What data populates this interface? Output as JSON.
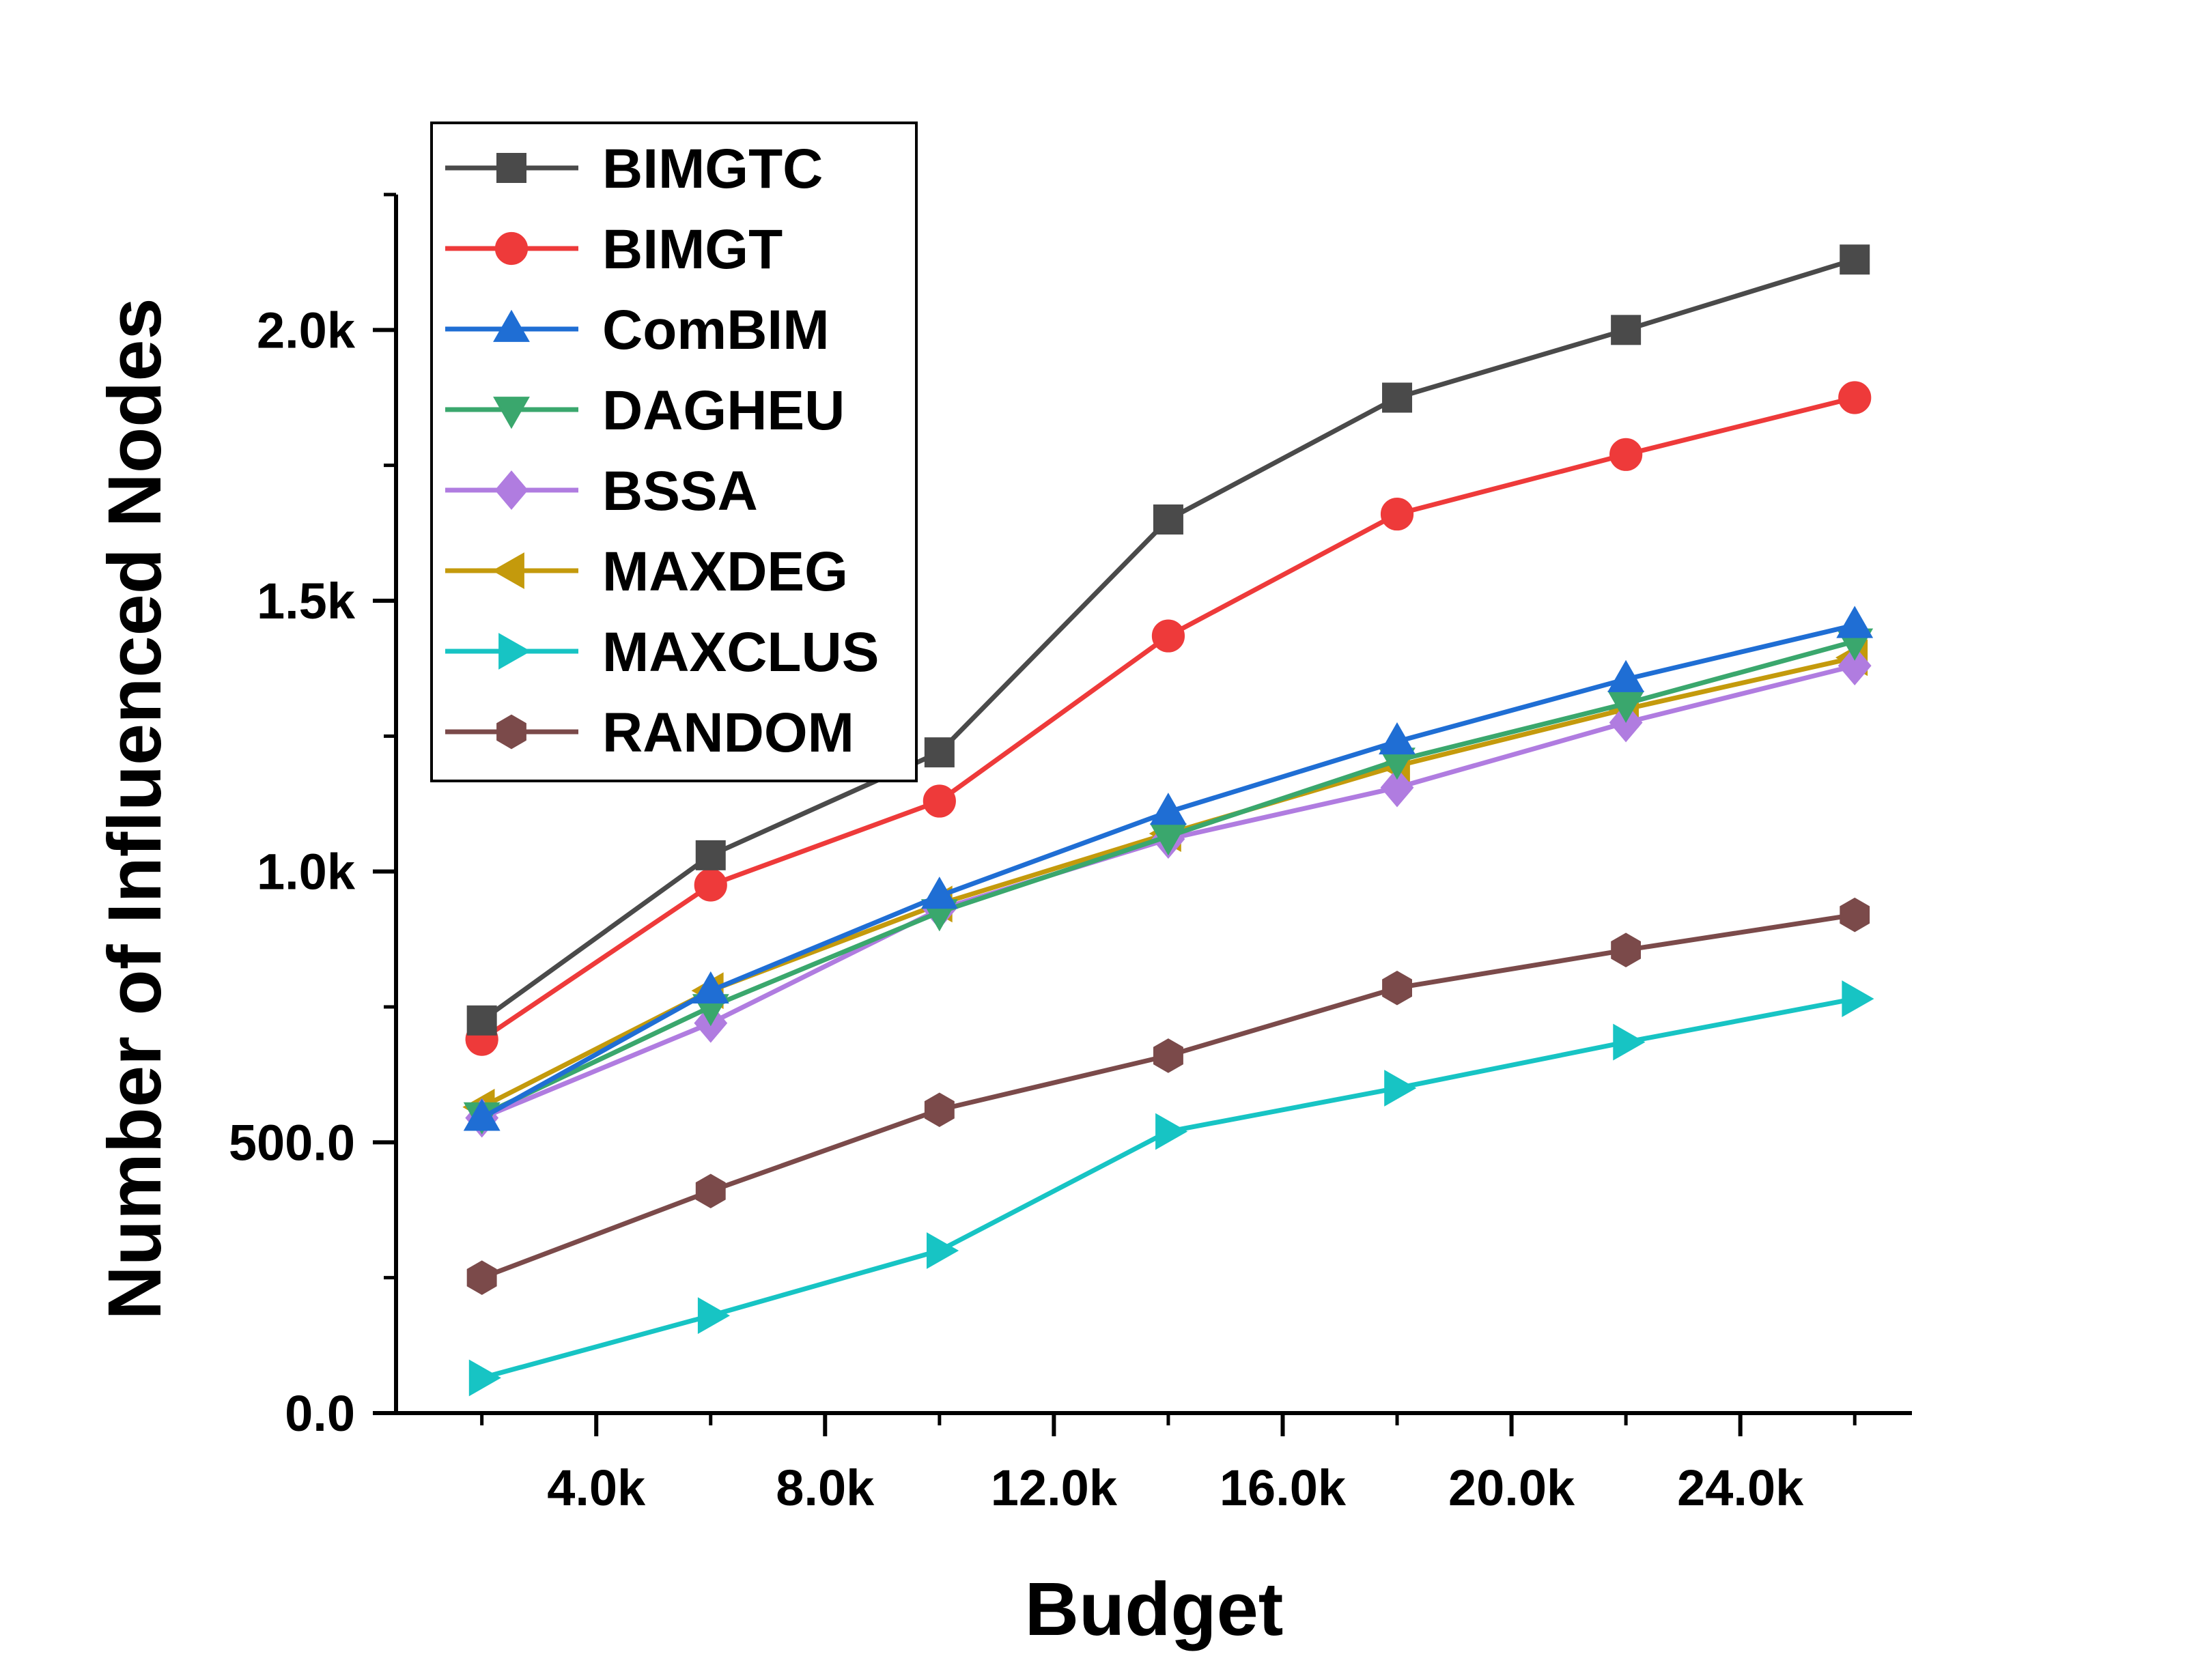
{
  "chart_data": {
    "type": "line",
    "title": "",
    "xlabel": "Budget",
    "ylabel": "Number of Influenced Nodes",
    "xlim": [
      500,
      27000
    ],
    "ylim": [
      0,
      2250
    ],
    "x": [
      2000,
      6000,
      10000,
      14000,
      18000,
      22000,
      26000
    ],
    "xticks": [
      4000,
      8000,
      12000,
      16000,
      20000,
      24000
    ],
    "xtick_labels": [
      "4.0k",
      "8.0k",
      "12.0k",
      "16.0k",
      "20.0k",
      "24.0k"
    ],
    "yticks": [
      0,
      500,
      1000,
      1500,
      2000
    ],
    "ytick_labels": [
      "0.0",
      "500.0",
      "1.0k",
      "1.5k",
      "2.0k"
    ],
    "grid": false,
    "legend_position": "top-left",
    "series": [
      {
        "name": "BIMGTC",
        "color": "#4a4a4a",
        "marker": "square",
        "values": [
          725,
          1030,
          1220,
          1650,
          1875,
          2000,
          2130
        ]
      },
      {
        "name": "BIMGT",
        "color": "#ee3a3a",
        "marker": "circle",
        "values": [
          690,
          975,
          1130,
          1435,
          1660,
          1770,
          1875
        ]
      },
      {
        "name": "ComBIM",
        "color": "#1f6ed4",
        "marker": "triangle-up",
        "values": [
          545,
          780,
          955,
          1110,
          1240,
          1355,
          1455
        ]
      },
      {
        "name": "DAGHEU",
        "color": "#3aa76d",
        "marker": "triangle-down",
        "values": [
          550,
          750,
          925,
          1065,
          1205,
          1310,
          1425
        ]
      },
      {
        "name": "BSSA",
        "color": "#b07ce0",
        "marker": "diamond",
        "values": [
          545,
          720,
          930,
          1060,
          1155,
          1275,
          1380
        ]
      },
      {
        "name": "MAXDEG",
        "color": "#c49a0c",
        "marker": "triangle-left",
        "values": [
          565,
          780,
          940,
          1070,
          1195,
          1300,
          1395
        ]
      },
      {
        "name": "MAXCLUS",
        "color": "#17c4c4",
        "marker": "triangle-right",
        "values": [
          65,
          180,
          300,
          520,
          600,
          685,
          765
        ]
      },
      {
        "name": "RANDOM",
        "color": "#7b4a4a",
        "marker": "hexagon",
        "values": [
          250,
          410,
          560,
          660,
          785,
          855,
          920
        ]
      }
    ]
  }
}
